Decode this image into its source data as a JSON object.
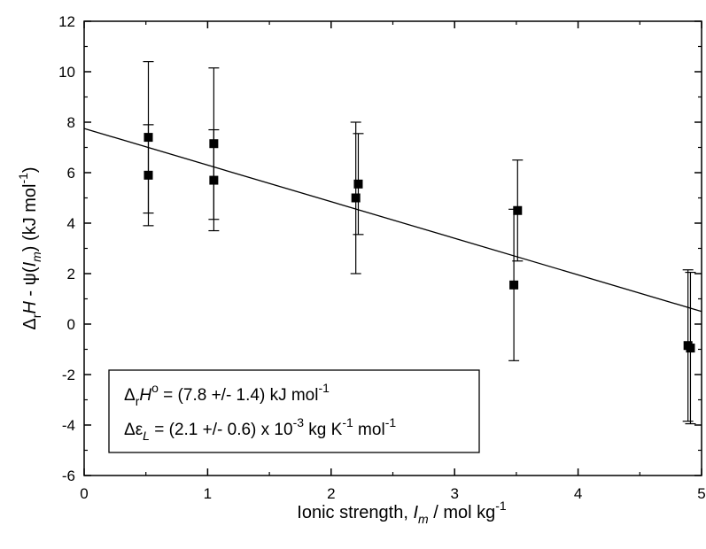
{
  "chart_data": {
    "type": "scatter",
    "xlabel": "Ionic strength, I_m / mol kg^-1",
    "ylabel": "Δ_r H - ψ(I_m) (kJ mol^-1)",
    "xlim": [
      0,
      5
    ],
    "ylim": [
      -6,
      12
    ],
    "x_ticks": [
      "0",
      "1",
      "2",
      "3",
      "4",
      "5"
    ],
    "y_ticks": [
      "-6",
      "-4",
      "-2",
      "0",
      "2",
      "4",
      "6",
      "8",
      "10",
      "12"
    ],
    "grid": false,
    "points": [
      {
        "x": 0.52,
        "y": 7.4,
        "err": 3.0
      },
      {
        "x": 0.52,
        "y": 5.9,
        "err": 2.0
      },
      {
        "x": 1.05,
        "y": 7.15,
        "err": 3.0
      },
      {
        "x": 1.05,
        "y": 5.7,
        "err": 2.0
      },
      {
        "x": 2.2,
        "y": 5.0,
        "err": 3.0
      },
      {
        "x": 2.22,
        "y": 5.55,
        "err": 2.0
      },
      {
        "x": 3.48,
        "y": 1.55,
        "err": 3.0
      },
      {
        "x": 3.51,
        "y": 4.5,
        "err": 2.0
      },
      {
        "x": 4.89,
        "y": -0.85,
        "err": 3.0
      },
      {
        "x": 4.91,
        "y": -0.95,
        "err": 3.0
      }
    ],
    "fit_line": {
      "x": [
        0,
        5
      ],
      "y": [
        7.75,
        0.5
      ]
    },
    "annotation": {
      "line1": {
        "pre": "Δ",
        "sub1": "r",
        "mid": "H",
        "sup1": "o",
        "post": " = (7.8 +/- 1.4) kJ mol",
        "sup2": "-1"
      },
      "line2": {
        "pre": "Δε",
        "sub1": "L",
        "mid": " = (2.1 +/- 0.6) x 10",
        "sup1": "-3",
        "post": " kg K",
        "sup2": "-1",
        "post2": " mol",
        "sup3": "-1"
      }
    },
    "xlabel_parts": {
      "pre": "Ionic strength, ",
      "ital": "I",
      "sub": "m",
      "post": " / mol kg",
      "sup": "-1"
    },
    "ylabel_parts": {
      "d": "Δ",
      "sub1": "r",
      "h": "H",
      "mid": " - ψ(",
      "ital": "I",
      "sub2": "m",
      "close": ")",
      "units": "  (kJ mol",
      "sup": "-1",
      "end": ")"
    }
  }
}
